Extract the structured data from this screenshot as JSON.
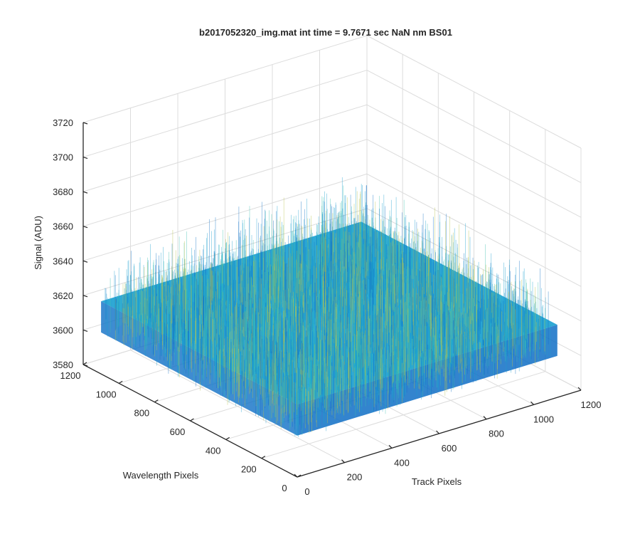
{
  "chart_data": {
    "type": "surface",
    "title": "b2017052320_img.mat int time = 9.7671 sec  NaN nm BS01",
    "xlabel": "Track Pixels",
    "ylabel": "Wavelength Pixels",
    "zlabel": "Signal (ADU)",
    "xlim": [
      0,
      1200
    ],
    "ylim": [
      0,
      1200
    ],
    "zlim": [
      3580,
      3720
    ],
    "xticks": [
      0,
      200,
      400,
      600,
      800,
      1000,
      1200
    ],
    "yticks": [
      0,
      200,
      400,
      600,
      800,
      1000,
      1200
    ],
    "zticks": [
      3580,
      3600,
      3620,
      3640,
      3660,
      3680,
      3700,
      3720
    ],
    "surface": {
      "x_range": [
        0,
        1100
      ],
      "y_range": [
        0,
        1100
      ],
      "mean_signal": 3622,
      "noise_range": [
        3600,
        3660
      ],
      "colormap": "parula"
    },
    "grid": true,
    "view": "3d"
  },
  "colors": {
    "surface_dark": "#0f6fc6",
    "surface_mid": "#1aa0d0",
    "surface_light": "#3bbfb0",
    "surface_yellow": "#b8c24a",
    "grid": "#dcdcdc",
    "axis": "#262626"
  }
}
